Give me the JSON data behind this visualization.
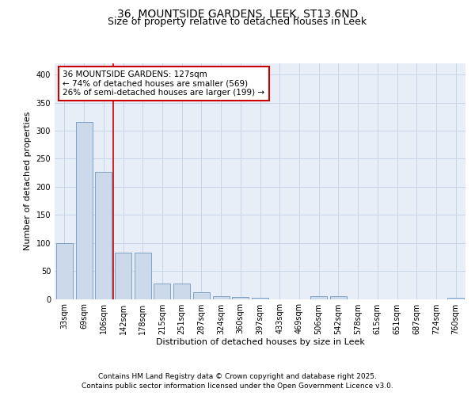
{
  "title_line1": "36, MOUNTSIDE GARDENS, LEEK, ST13 6ND",
  "title_line2": "Size of property relative to detached houses in Leek",
  "xlabel": "Distribution of detached houses by size in Leek",
  "ylabel": "Number of detached properties",
  "categories": [
    "33sqm",
    "69sqm",
    "106sqm",
    "142sqm",
    "178sqm",
    "215sqm",
    "251sqm",
    "287sqm",
    "324sqm",
    "360sqm",
    "397sqm",
    "433sqm",
    "469sqm",
    "506sqm",
    "542sqm",
    "578sqm",
    "615sqm",
    "651sqm",
    "687sqm",
    "724sqm",
    "760sqm"
  ],
  "values": [
    100,
    316,
    226,
    82,
    82,
    27,
    27,
    12,
    5,
    4,
    2,
    0,
    0,
    5,
    5,
    0,
    0,
    0,
    0,
    0,
    2
  ],
  "bar_color": "#ccd9eb",
  "bar_edge_color": "#7098c4",
  "red_line_x": 2.5,
  "annotation_text": "36 MOUNTSIDE GARDENS: 127sqm\n← 74% of detached houses are smaller (569)\n26% of semi-detached houses are larger (199) →",
  "annotation_box_color": "white",
  "annotation_box_edge_color": "#cc0000",
  "red_line_color": "#cc0000",
  "ylim": [
    0,
    420
  ],
  "yticks": [
    0,
    50,
    100,
    150,
    200,
    250,
    300,
    350,
    400
  ],
  "grid_color": "#c8d4e8",
  "background_color": "#e8eef8",
  "footer_line1": "Contains HM Land Registry data © Crown copyright and database right 2025.",
  "footer_line2": "Contains public sector information licensed under the Open Government Licence v3.0.",
  "title_fontsize": 10,
  "subtitle_fontsize": 9,
  "axis_label_fontsize": 8,
  "tick_fontsize": 7,
  "annotation_fontsize": 7.5,
  "footer_fontsize": 6.5
}
